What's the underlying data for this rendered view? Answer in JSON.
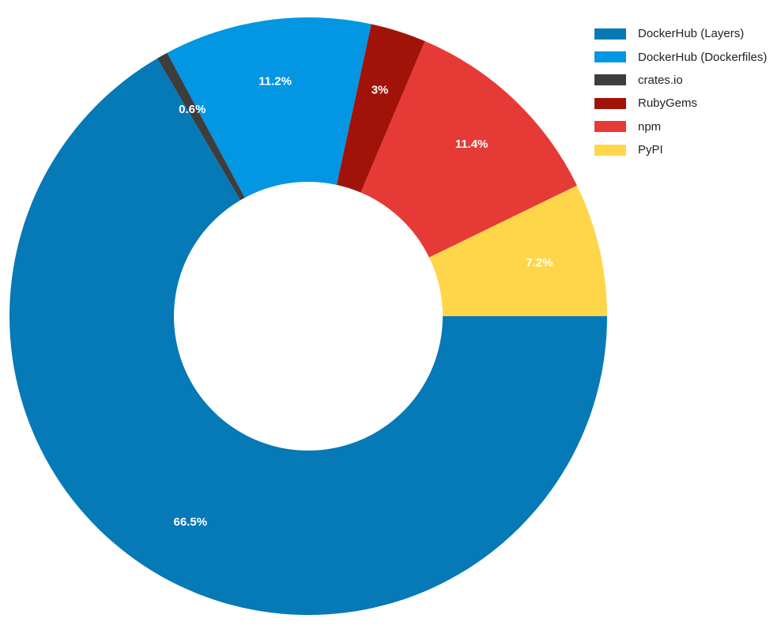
{
  "chart_data": {
    "type": "pie",
    "variant": "donut",
    "title": "",
    "categories": [
      "DockerHub (Layers)",
      "DockerHub (Dockerfiles)",
      "crates.io",
      "RubyGems",
      "npm",
      "PyPI"
    ],
    "values": [
      66.5,
      11.2,
      0.6,
      3,
      11.4,
      7.2
    ],
    "value_labels": [
      "66.5%",
      "11.2%",
      "0.6%",
      "3%",
      "11.4%",
      "7.2%"
    ],
    "colors": [
      "#0679b7",
      "#0396e3",
      "#3d3d3d",
      "#a11309",
      "#e53a35",
      "#ffd54a"
    ],
    "legend_position": "top-right",
    "draw_order": [
      5,
      4,
      3,
      1,
      2,
      0
    ]
  }
}
